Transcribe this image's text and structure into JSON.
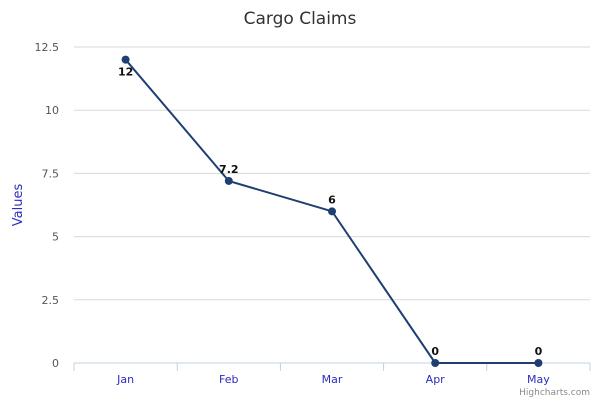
{
  "chart_data": {
    "type": "line",
    "title": "Cargo Claims",
    "xlabel": "",
    "ylabel": "Values",
    "categories": [
      "Jan",
      "Feb",
      "Mar",
      "Apr",
      "May"
    ],
    "series": [
      {
        "values": [
          12,
          7.2,
          6,
          0,
          0
        ],
        "color": "#1f3f73"
      }
    ],
    "data_labels": [
      "12",
      "7.2",
      "6",
      "0",
      "0"
    ],
    "ylim": [
      0,
      12.5
    ],
    "y_ticks": [
      0,
      2.5,
      5,
      7.5,
      10,
      12.5
    ],
    "y_tick_labels": [
      "0",
      "2.5",
      "5",
      "7.5",
      "10",
      "12.5"
    ],
    "grid": true,
    "legend": "none"
  },
  "credits": "Highcharts.com",
  "colors": {
    "series": "#1f3f73",
    "axis_title": "#2b2bbf",
    "x_tick_labels": "#2b2bbf"
  }
}
